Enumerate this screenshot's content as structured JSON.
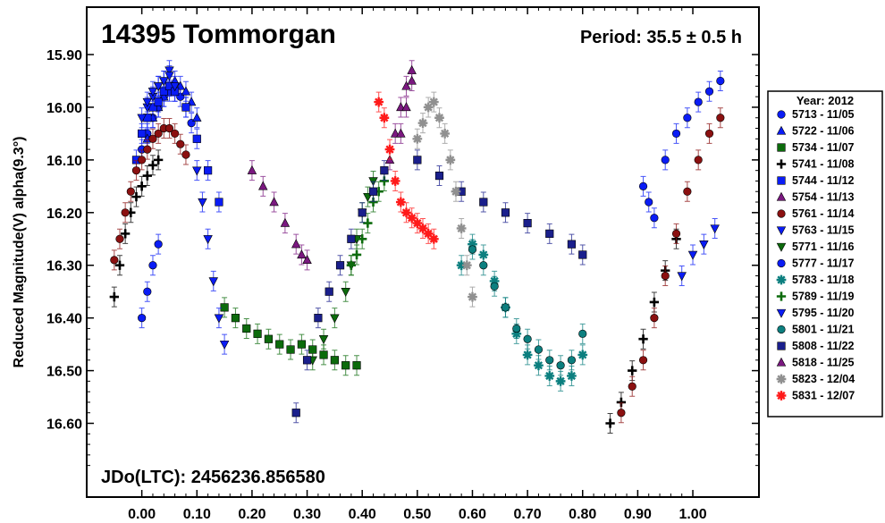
{
  "chart_data": {
    "type": "scatter",
    "title": "14395 Tommorgan",
    "period_label": "Period: 35.5 ± 0.5 h",
    "epoch_label": "JDo(LTC): 2456236.856580",
    "ylabel": "Reduced Magnitude(V) alpha(9.3°)",
    "xlabel": "",
    "xlim": [
      -0.1,
      1.12
    ],
    "ylim": [
      15.81,
      16.74
    ],
    "y_inverted": true,
    "xticks": [
      "0.00",
      "0.10",
      "0.20",
      "0.30",
      "0.40",
      "0.50",
      "0.60",
      "0.70",
      "0.80",
      "0.90",
      "1.00"
    ],
    "yticks": [
      "15.90",
      "16.00",
      "16.10",
      "16.20",
      "16.30",
      "16.40",
      "16.50",
      "16.60"
    ],
    "legend_title": "Year: 2012",
    "legend_position": "right",
    "series": [
      {
        "name": "5713 - 11/05",
        "marker": "circle",
        "color": "#0a1cf5",
        "x": [
          0.0,
          0.01,
          0.02,
          0.03,
          0.04,
          0.05,
          0.06,
          0.07,
          0.08,
          0.09
        ],
        "y": [
          16.08,
          16.05,
          16.02,
          16.0,
          15.98,
          15.97,
          15.97,
          15.98,
          16.0,
          16.03
        ]
      },
      {
        "name": "5722 - 11/06",
        "marker": "triangle-up",
        "color": "#0a1cf5",
        "x": [
          0.01,
          0.02,
          0.03,
          0.04,
          0.05,
          0.06,
          0.07,
          0.08,
          0.09,
          0.1
        ],
        "y": [
          16.06,
          16.02,
          16.0,
          15.98,
          15.96,
          15.95,
          15.96,
          15.97,
          15.99,
          16.02
        ]
      },
      {
        "name": "5734 - 11/07",
        "marker": "square",
        "color": "#0c6b0c",
        "x": [
          0.15,
          0.17,
          0.19,
          0.21,
          0.23,
          0.25,
          0.27,
          0.29,
          0.31,
          0.33,
          0.35,
          0.37,
          0.39
        ],
        "y": [
          16.38,
          16.4,
          16.42,
          16.43,
          16.44,
          16.45,
          16.46,
          16.45,
          16.46,
          16.47,
          16.48,
          16.49,
          16.49
        ]
      },
      {
        "name": "5741 - 11/08",
        "marker": "plus",
        "color": "#000000",
        "x": [
          -0.05,
          -0.04,
          -0.03,
          -0.02,
          -0.01,
          0.0,
          0.01,
          0.02,
          0.03,
          0.85,
          0.87,
          0.89,
          0.91,
          0.93,
          0.95,
          0.97
        ],
        "y": [
          16.36,
          16.3,
          16.24,
          16.2,
          16.17,
          16.15,
          16.13,
          16.11,
          16.1,
          16.6,
          16.56,
          16.5,
          16.44,
          16.37,
          16.31,
          16.25
        ]
      },
      {
        "name": "5744 - 11/12",
        "marker": "square",
        "color": "#0a1cf5",
        "x": [
          -0.01,
          0.0,
          0.01,
          0.02,
          0.03,
          0.04,
          0.05,
          0.06,
          0.08,
          0.1,
          0.12,
          0.14
        ],
        "y": [
          16.1,
          16.05,
          16.02,
          16.0,
          15.99,
          15.97,
          15.96,
          15.97,
          16.0,
          16.06,
          16.12,
          16.18
        ]
      },
      {
        "name": "5754 - 11/13",
        "marker": "triangle-up",
        "color": "#7b1880",
        "x": [
          0.2,
          0.22,
          0.24,
          0.26,
          0.28,
          0.29,
          0.3,
          0.45,
          0.46,
          0.47,
          0.48,
          0.49
        ],
        "y": [
          16.12,
          16.15,
          16.18,
          16.22,
          16.26,
          16.28,
          16.29,
          16.1,
          16.05,
          16.0,
          15.96,
          15.93
        ]
      },
      {
        "name": "5761 - 11/14",
        "marker": "circle",
        "color": "#8b1010",
        "x": [
          -0.05,
          -0.04,
          -0.03,
          -0.02,
          -0.01,
          0.0,
          0.01,
          0.02,
          0.03,
          0.04,
          0.05,
          0.06,
          0.07,
          0.08,
          0.87,
          0.89,
          0.91,
          0.93,
          0.95,
          0.97,
          0.99,
          1.01,
          1.03,
          1.05
        ],
        "y": [
          16.29,
          16.25,
          16.2,
          16.16,
          16.12,
          16.1,
          16.08,
          16.06,
          16.05,
          16.04,
          16.04,
          16.05,
          16.07,
          16.09,
          16.58,
          16.53,
          16.48,
          16.4,
          16.32,
          16.24,
          16.16,
          16.1,
          16.05,
          16.02
        ]
      },
      {
        "name": "5763 - 11/15",
        "marker": "triangle-down",
        "color": "#0a1cf5",
        "x": [
          0.01,
          0.02,
          0.03,
          0.04,
          0.05,
          0.1,
          0.11,
          0.12,
          0.13,
          0.14,
          0.15
        ],
        "y": [
          16.0,
          15.98,
          15.96,
          15.95,
          15.93,
          16.12,
          16.18,
          16.25,
          16.33,
          16.4,
          16.45
        ]
      },
      {
        "name": "5771 - 11/16",
        "marker": "triangle-down",
        "color": "#0c6b0c",
        "x": [
          0.31,
          0.33,
          0.35,
          0.37,
          0.38,
          0.39,
          0.4,
          0.41,
          0.42
        ],
        "y": [
          16.48,
          16.44,
          16.4,
          16.35,
          16.3,
          16.25,
          16.2,
          16.17,
          16.14
        ]
      },
      {
        "name": "5777 - 11/17",
        "marker": "circle",
        "color": "#0a1cf5",
        "x": [
          0.0,
          0.01,
          0.02,
          0.03,
          0.91,
          0.92,
          0.93,
          0.95,
          0.97,
          0.99,
          1.01,
          1.03,
          1.05
        ],
        "y": [
          16.4,
          16.35,
          16.3,
          16.26,
          16.15,
          16.18,
          16.21,
          16.1,
          16.05,
          16.02,
          15.99,
          15.97,
          15.95
        ]
      },
      {
        "name": "5783 - 11/18",
        "marker": "star",
        "color": "#0c7f7f",
        "x": [
          0.58,
          0.6,
          0.62,
          0.64,
          0.66,
          0.68,
          0.7,
          0.72,
          0.74,
          0.76,
          0.78,
          0.8
        ],
        "y": [
          16.3,
          16.26,
          16.28,
          16.33,
          16.38,
          16.43,
          16.47,
          16.49,
          16.51,
          16.52,
          16.51,
          16.47
        ]
      },
      {
        "name": "5789 - 11/19",
        "marker": "plus",
        "color": "#0c6b0c",
        "x": [
          0.38,
          0.39,
          0.4,
          0.41,
          0.42,
          0.43,
          0.44
        ],
        "y": [
          16.3,
          16.28,
          16.25,
          16.22,
          16.18,
          16.16,
          16.14
        ]
      },
      {
        "name": "5795 - 11/20",
        "marker": "triangle-down",
        "color": "#0a1cf5",
        "x": [
          0.0,
          0.01,
          0.02,
          0.03,
          0.04,
          0.05,
          0.06,
          0.98,
          1.0,
          1.02,
          1.04
        ],
        "y": [
          16.02,
          15.99,
          15.97,
          15.96,
          15.95,
          15.94,
          15.96,
          16.32,
          16.28,
          16.26,
          16.23
        ]
      },
      {
        "name": "5801 - 11/21",
        "marker": "circle",
        "color": "#0c7f7f",
        "x": [
          0.6,
          0.62,
          0.64,
          0.66,
          0.68,
          0.7,
          0.72,
          0.74,
          0.76,
          0.78,
          0.8
        ],
        "y": [
          16.27,
          16.3,
          16.34,
          16.38,
          16.42,
          16.44,
          16.46,
          16.48,
          16.49,
          16.48,
          16.43
        ]
      },
      {
        "name": "5808 - 11/22",
        "marker": "square",
        "color": "#1a1f8c",
        "x": [
          0.28,
          0.3,
          0.32,
          0.34,
          0.36,
          0.38,
          0.4,
          0.42,
          0.44,
          0.5,
          0.54,
          0.58,
          0.62,
          0.66,
          0.7,
          0.74,
          0.78,
          0.8
        ],
        "y": [
          16.58,
          16.48,
          16.4,
          16.35,
          16.3,
          16.25,
          16.2,
          16.16,
          16.12,
          16.1,
          16.13,
          16.16,
          16.18,
          16.2,
          16.22,
          16.24,
          16.26,
          16.28
        ]
      },
      {
        "name": "5818 - 11/25",
        "marker": "triangle-up",
        "color": "#7b1880",
        "x": [
          0.47,
          0.48,
          0.49
        ],
        "y": [
          16.05,
          16.0,
          15.95
        ]
      },
      {
        "name": "5823 - 12/04",
        "marker": "star",
        "color": "#909090",
        "x": [
          0.5,
          0.51,
          0.52,
          0.53,
          0.54,
          0.55,
          0.56,
          0.57,
          0.58,
          0.59,
          0.6
        ],
        "y": [
          16.06,
          16.03,
          16.0,
          15.99,
          16.02,
          16.05,
          16.1,
          16.16,
          16.23,
          16.3,
          16.36
        ]
      },
      {
        "name": "5831 - 12/07",
        "marker": "star",
        "color": "#ff1a1a",
        "x": [
          0.43,
          0.44,
          0.45,
          0.46,
          0.47,
          0.48,
          0.49,
          0.5,
          0.51,
          0.52,
          0.53
        ],
        "y": [
          15.99,
          16.02,
          16.08,
          16.14,
          16.18,
          16.2,
          16.21,
          16.22,
          16.23,
          16.24,
          16.25
        ]
      }
    ]
  }
}
